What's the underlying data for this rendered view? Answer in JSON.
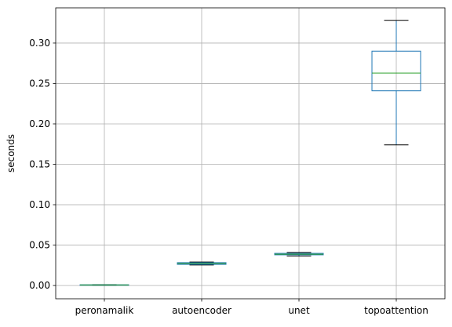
{
  "chart_data": {
    "type": "box",
    "title": "",
    "xlabel": "",
    "ylabel": "seconds",
    "categories": [
      "peronamalik",
      "autoencoder",
      "unet",
      "topoattention"
    ],
    "yticks": [
      "0.00",
      "0.05",
      "0.10",
      "0.15",
      "0.20",
      "0.25",
      "0.30"
    ],
    "ylim": [
      -0.0164,
      0.3436
    ],
    "grid": true,
    "series": [
      {
        "category": "peronamalik",
        "whisker_low": 0.0003,
        "q1": 0.0005,
        "median": 0.0007,
        "q3": 0.0009,
        "whisker_high": 0.0011
      },
      {
        "category": "autoencoder",
        "whisker_low": 0.0255,
        "q1": 0.0262,
        "median": 0.0273,
        "q3": 0.0283,
        "whisker_high": 0.0291
      },
      {
        "category": "unet",
        "whisker_low": 0.0365,
        "q1": 0.038,
        "median": 0.0388,
        "q3": 0.0398,
        "whisker_high": 0.0408
      },
      {
        "category": "topoattention",
        "whisker_low": 0.174,
        "q1": 0.241,
        "median": 0.263,
        "q3": 0.29,
        "whisker_high": 0.328
      }
    ],
    "colors": {
      "box": "#1f77b4",
      "median": "#2ca02c",
      "whisker_cap": "#000000",
      "grid": "#b0b0b0",
      "axes": "#000000"
    }
  }
}
